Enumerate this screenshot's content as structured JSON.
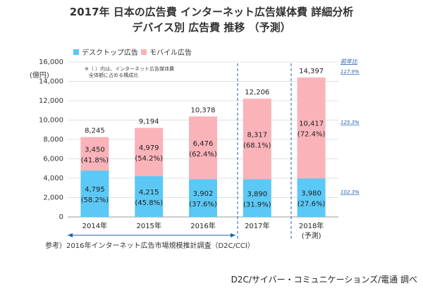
{
  "title_line1": "2017年 日本の広告費 インターネット広告媒体費 詳細分析",
  "title_line2": "デバイス別 広告費 推移 （予測）",
  "note_line1": "※（ ）内は、インターネット広告媒体費",
  "note_line2": "全体額に占める構成比",
  "reference": "参考）2016年インターネット広告市場規模推計調査（D2C/CCI）",
  "credit": "D2C/サイバー・コミュニケーションズ/電通 調べ",
  "chart_data": {
    "type": "bar",
    "stacked": true,
    "ylabel": "(億円)",
    "ylim": [
      0,
      16000
    ],
    "yticks": [
      "0",
      "2,000",
      "4,000",
      "6,000",
      "8,000",
      "10,000",
      "12,000",
      "14,000",
      "16,000"
    ],
    "categories": [
      "2014年",
      "2015年",
      "2016年",
      "2017年",
      "2018年"
    ],
    "category_sublabels": [
      "",
      "",
      "",
      "",
      "(予測)"
    ],
    "series": [
      {
        "name": "デスクトップ広告",
        "color": "#5bc8f5",
        "values": [
          4795,
          4215,
          3902,
          3890,
          3980
        ],
        "value_labels": [
          "4,795",
          "4,215",
          "3,902",
          "3,890",
          "3,980"
        ],
        "share_labels": [
          "(58.2%)",
          "(45.8%)",
          "(37.6%)",
          "(31.9%)",
          "(27.6%)"
        ]
      },
      {
        "name": "モバイル広告",
        "color": "#f9b3b9",
        "values": [
          3450,
          4979,
          6476,
          8317,
          10417
        ],
        "value_labels": [
          "3,450",
          "4,979",
          "6,476",
          "8,317",
          "10,417"
        ],
        "share_labels": [
          "(41.8%)",
          "(54.2%)",
          "(62.4%)",
          "(68.1%)",
          "(72.4%)"
        ]
      }
    ],
    "totals": [
      8245,
      9194,
      10378,
      12206,
      14397
    ],
    "total_labels": [
      "8,245",
      "9,194",
      "10,378",
      "12,206",
      "14,397"
    ],
    "yoy": {
      "header": "前年比",
      "total": "117.9%",
      "mobile": "125.3%",
      "desktop": "102.3%",
      "color": "#1f5fb4"
    },
    "grid": true,
    "legend_position": "top-left"
  }
}
